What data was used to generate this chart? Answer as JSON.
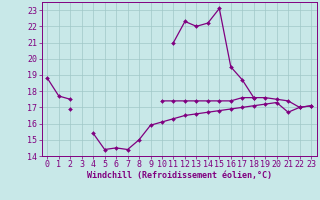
{
  "x": [
    0,
    1,
    2,
    3,
    4,
    5,
    6,
    7,
    8,
    9,
    10,
    11,
    12,
    13,
    14,
    15,
    16,
    17,
    18,
    19,
    20,
    21,
    22,
    23
  ],
  "line1": [
    18.8,
    17.7,
    17.5,
    null,
    null,
    null,
    null,
    null,
    null,
    null,
    17.4,
    17.4,
    17.4,
    17.4,
    17.4,
    17.4,
    17.4,
    17.6,
    17.6,
    17.6,
    17.5,
    17.4,
    17.0,
    17.1
  ],
  "line2": [
    null,
    null,
    16.9,
    null,
    15.4,
    14.4,
    14.5,
    14.4,
    15.0,
    15.9,
    16.1,
    16.3,
    16.5,
    16.6,
    16.7,
    16.8,
    16.9,
    17.0,
    17.1,
    17.2,
    17.3,
    16.7,
    17.0,
    17.1
  ],
  "line3": [
    null,
    null,
    null,
    null,
    null,
    null,
    null,
    null,
    null,
    null,
    null,
    21.0,
    22.3,
    22.0,
    22.2,
    23.1,
    19.5,
    18.7,
    17.6,
    null,
    null,
    null,
    null,
    null
  ],
  "ylim": [
    14,
    23.5
  ],
  "xlim": [
    -0.5,
    23.5
  ],
  "yticks": [
    14,
    15,
    16,
    17,
    18,
    19,
    20,
    21,
    22,
    23
  ],
  "xticks": [
    0,
    1,
    2,
    3,
    4,
    5,
    6,
    7,
    8,
    9,
    10,
    11,
    12,
    13,
    14,
    15,
    16,
    17,
    18,
    19,
    20,
    21,
    22,
    23
  ],
  "xlabel": "Windchill (Refroidissement éolien,°C)",
  "line_color": "#800080",
  "bg_color": "#c8e8e8",
  "grid_color": "#a0c8c8",
  "marker": "D",
  "markersize": 2.0,
  "linewidth": 0.9,
  "tick_fontsize": 6.0,
  "xlabel_fontsize": 6.0
}
